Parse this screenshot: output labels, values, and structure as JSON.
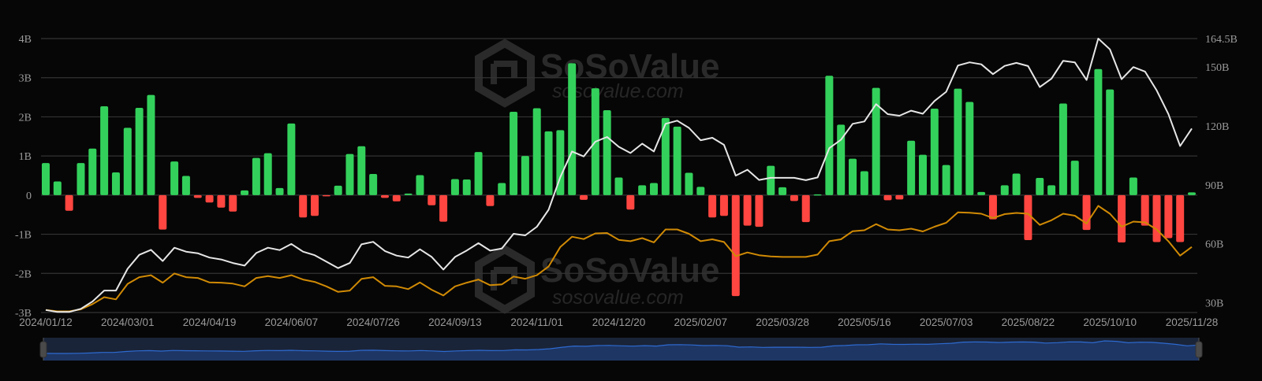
{
  "watermark": {
    "brand": "SoSoValue",
    "site": "sosovalue.com"
  },
  "colors": {
    "background": "#060606",
    "grid": "#333333",
    "inflow": "#33d15b",
    "outflow": "#ff4640",
    "line_white": "#e6e6e6",
    "line_orange": "#d08a05",
    "navigator_fill": "#1e3664",
    "navigator_line": "#2d6ad0",
    "navigator_bg": "#1a2438"
  },
  "chart_data": {
    "type": "bar+line",
    "title": "",
    "left_axis": {
      "ticks": [
        "4B",
        "3B",
        "2B",
        "1B",
        "0",
        "-1B",
        "-2B",
        "-3B"
      ],
      "tick_values": [
        4,
        3,
        2,
        1,
        0,
        -1,
        -2,
        -3
      ],
      "ylim": [
        -3,
        4
      ],
      "unit": "B"
    },
    "right_axis": {
      "ticks": [
        "164.5B",
        "150B",
        "120B",
        "90B",
        "60B",
        "30B"
      ],
      "tick_values": [
        164.5,
        150,
        120,
        90,
        60,
        30
      ],
      "ylim": [
        25,
        164.5
      ],
      "unit": "B"
    },
    "x_tick_labels": [
      "2024/01/12",
      "2024/03/01",
      "2024/04/19",
      "2024/06/07",
      "2024/07/26",
      "2024/09/13",
      "2024/11/01",
      "2024/12/20",
      "2025/02/07",
      "2025/03/28",
      "2025/05/16",
      "2025/07/03",
      "2025/08/22",
      "2025/10/10",
      "2025/11/28"
    ],
    "x_tick_every": 7,
    "grid": true,
    "legend": "none",
    "bars_left_axis": [
      0.82,
      0.35,
      -0.4,
      0.82,
      1.19,
      2.27,
      0.58,
      1.72,
      2.23,
      2.56,
      -0.88,
      0.86,
      0.49,
      -0.07,
      -0.19,
      -0.32,
      -0.42,
      0.12,
      0.95,
      1.07,
      0.18,
      1.83,
      -0.57,
      -0.53,
      -0.03,
      0.24,
      1.05,
      1.25,
      0.54,
      -0.07,
      -0.16,
      0.04,
      0.51,
      -0.26,
      -0.68,
      0.41,
      0.4,
      1.1,
      -0.28,
      0.31,
      2.13,
      1.0,
      2.22,
      1.63,
      1.66,
      3.37,
      -0.12,
      2.73,
      2.17,
      0.45,
      -0.37,
      0.25,
      0.31,
      1.97,
      1.75,
      0.57,
      0.21,
      -0.57,
      -0.53,
      -2.58,
      -0.78,
      -0.81,
      0.75,
      0.2,
      -0.15,
      -0.69,
      0.02,
      3.05,
      1.8,
      0.93,
      0.61,
      2.74,
      -0.13,
      -0.11,
      1.39,
      1.03,
      2.21,
      0.77,
      2.72,
      2.38,
      0.08,
      -0.62,
      0.25,
      0.55,
      -1.15,
      0.44,
      0.25,
      2.34,
      0.88,
      -0.89,
      3.22,
      2.7,
      -1.21,
      0.45,
      -0.78,
      -1.2,
      -1.1,
      -1.2,
      0.07
    ],
    "line_white_right_axis": [
      26.3,
      25.3,
      25.3,
      26.9,
      30.6,
      36.2,
      36.2,
      47.3,
      54.4,
      56.9,
      51.2,
      58.0,
      56.0,
      55.2,
      53.0,
      52.0,
      50.2,
      48.9,
      55.3,
      58.0,
      56.8,
      59.9,
      56.0,
      54.2,
      50.9,
      47.6,
      50.2,
      59.7,
      61.0,
      56.3,
      54.0,
      53.0,
      57.2,
      53.3,
      46.9,
      53.3,
      56.6,
      60.3,
      56.5,
      57.6,
      65.1,
      64.3,
      68.7,
      77.3,
      94.0,
      107.0,
      104.5,
      112.0,
      114.4,
      109.4,
      106.2,
      111.0,
      107.0,
      121.1,
      122.7,
      119.0,
      112.7,
      114.0,
      110.4,
      94.7,
      97.7,
      92.5,
      93.6,
      93.6,
      93.6,
      92.4,
      93.8,
      108.7,
      113.0,
      121.1,
      122.3,
      131.1,
      126.0,
      125.2,
      127.8,
      126.2,
      132.7,
      137.4,
      150.8,
      152.4,
      151.4,
      146.4,
      150.6,
      152.1,
      150.5,
      139.8,
      144.1,
      153.2,
      152.4,
      143.4,
      164.5,
      159.0,
      143.8,
      150.0,
      147.7,
      138.1,
      126.1,
      109.8,
      118.7
    ],
    "line_orange_right_axis": [
      26.3,
      25.6,
      25.6,
      26.6,
      29.3,
      32.8,
      31.7,
      39.6,
      43.0,
      44.0,
      40.2,
      44.9,
      43.0,
      42.6,
      40.3,
      40.2,
      39.7,
      38.3,
      42.6,
      43.5,
      42.6,
      44.0,
      41.8,
      40.6,
      38.3,
      35.5,
      36.2,
      42.1,
      43.0,
      38.6,
      38.3,
      36.9,
      40.3,
      36.6,
      33.7,
      38.3,
      40.2,
      41.8,
      38.9,
      39.3,
      43.3,
      42.2,
      44.0,
      48.4,
      58.4,
      63.6,
      62.4,
      65.3,
      65.5,
      62.0,
      61.3,
      62.9,
      60.7,
      67.3,
      67.3,
      65.1,
      61.3,
      62.3,
      60.9,
      53.7,
      55.6,
      54.2,
      53.6,
      53.3,
      53.3,
      53.3,
      54.5,
      61.3,
      62.3,
      66.4,
      66.9,
      70.0,
      67.3,
      66.9,
      67.7,
      66.3,
      68.7,
      70.7,
      76.0,
      75.8,
      75.3,
      73.1,
      75.1,
      75.7,
      75.3,
      69.6,
      72.0,
      75.3,
      74.3,
      70.3,
      79.3,
      75.3,
      68.7,
      71.3,
      70.9,
      67.3,
      61.3,
      54.0,
      58.4
    ]
  }
}
